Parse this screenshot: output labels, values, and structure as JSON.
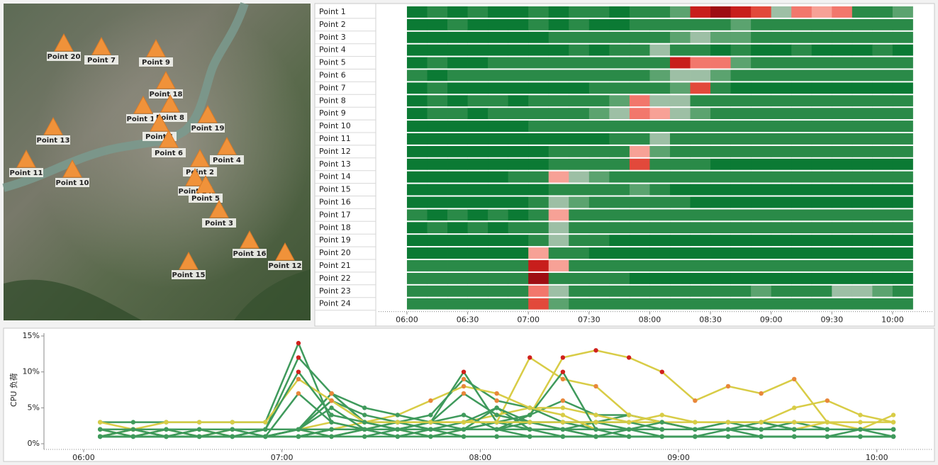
{
  "map": {
    "markers": [
      "Point 20",
      "Point 7",
      "Point 9",
      "Point 18",
      "Point 17",
      "Point 8",
      "Point 1",
      "Point 19",
      "Point 13",
      "Point 6",
      "Point 4",
      "Point 11",
      "Point 2",
      "Point 10",
      "Point 14",
      "Point 5",
      "Point 3",
      "Point 16",
      "Point 12",
      "Point 15"
    ]
  },
  "chart_data": [
    {
      "type": "heatmap",
      "categories": [
        "Point 1",
        "Point 2",
        "Point 3",
        "Point 4",
        "Point 5",
        "Point 6",
        "Point 7",
        "Point 8",
        "Point 9",
        "Point 10",
        "Point 11",
        "Point 12",
        "Point 13",
        "Point 14",
        "Point 15",
        "Point 16",
        "Point 17",
        "Point 18",
        "Point 19",
        "Point 20",
        "Point 21",
        "Point 22",
        "Point 23",
        "Point 24"
      ],
      "bins": [
        360,
        370,
        380,
        390,
        400,
        410,
        420,
        430,
        440,
        450,
        460,
        470,
        480,
        490,
        500,
        510,
        520,
        530,
        540,
        550,
        560,
        570,
        580,
        590,
        600,
        610
      ],
      "values": [
        [
          1,
          2,
          1,
          2,
          1,
          1,
          2,
          1,
          2,
          2,
          1,
          2,
          2,
          4,
          12,
          13,
          12,
          10,
          6,
          8,
          7,
          9,
          3,
          2,
          4
        ],
        [
          1,
          1,
          2,
          1,
          1,
          1,
          2,
          1,
          2,
          1,
          1,
          2,
          2,
          3,
          2,
          3,
          4,
          3,
          2,
          3,
          2,
          2,
          2,
          2,
          2
        ],
        [
          1,
          1,
          1,
          1,
          1,
          1,
          1,
          2,
          2,
          2,
          2,
          2,
          3,
          4,
          6,
          4,
          4,
          3,
          2,
          2,
          2,
          3,
          2,
          2,
          2
        ],
        [
          1,
          1,
          1,
          1,
          1,
          1,
          1,
          1,
          2,
          1,
          2,
          3,
          5,
          2,
          2,
          1,
          2,
          1,
          1,
          2,
          1,
          1,
          1,
          2,
          1
        ],
        [
          1,
          2,
          1,
          1,
          2,
          2,
          2,
          2,
          2,
          3,
          3,
          3,
          3,
          12,
          9,
          8,
          4,
          3,
          2,
          2,
          2,
          2,
          3,
          2,
          2
        ],
        [
          2,
          1,
          2,
          2,
          2,
          2,
          2,
          3,
          2,
          2,
          3,
          3,
          4,
          5,
          5,
          4,
          3,
          3,
          3,
          3,
          3,
          3,
          3,
          3,
          3
        ],
        [
          1,
          2,
          1,
          1,
          1,
          1,
          1,
          1,
          1,
          2,
          2,
          2,
          2,
          4,
          10,
          2,
          1,
          1,
          1,
          1,
          1,
          1,
          1,
          1,
          1
        ],
        [
          1,
          2,
          1,
          2,
          2,
          1,
          2,
          2,
          2,
          3,
          4,
          9,
          6,
          5,
          3,
          2,
          2,
          2,
          2,
          2,
          2,
          2,
          2,
          2,
          2
        ],
        [
          1,
          2,
          2,
          1,
          2,
          2,
          2,
          2,
          3,
          4,
          6,
          8,
          7,
          5,
          4,
          2,
          2,
          2,
          2,
          2,
          2,
          2,
          2,
          2,
          2
        ],
        [
          1,
          1,
          1,
          1,
          1,
          1,
          2,
          2,
          2,
          2,
          2,
          2,
          3,
          3,
          3,
          3,
          2,
          3,
          2,
          2,
          3,
          2,
          2,
          2,
          2
        ],
        [
          1,
          1,
          1,
          1,
          1,
          1,
          1,
          1,
          1,
          1,
          2,
          2,
          5,
          3,
          3,
          3,
          3,
          2,
          2,
          3,
          3,
          2,
          2,
          2,
          2
        ],
        [
          1,
          1,
          1,
          1,
          1,
          1,
          1,
          2,
          2,
          2,
          3,
          7,
          4,
          3,
          2,
          2,
          2,
          2,
          2,
          2,
          2,
          2,
          2,
          2,
          2
        ],
        [
          1,
          1,
          1,
          1,
          1,
          1,
          1,
          2,
          2,
          2,
          3,
          10,
          3,
          2,
          2,
          1,
          1,
          1,
          1,
          1,
          1,
          1,
          1,
          1,
          1
        ],
        [
          1,
          1,
          1,
          1,
          1,
          2,
          2,
          7,
          5,
          4,
          3,
          2,
          2,
          2,
          2,
          2,
          2,
          2,
          2,
          2,
          2,
          2,
          2,
          2,
          2
        ],
        [
          1,
          1,
          1,
          1,
          1,
          1,
          1,
          2,
          2,
          2,
          3,
          4,
          2,
          1,
          1,
          1,
          1,
          1,
          1,
          1,
          1,
          1,
          1,
          1,
          1
        ],
        [
          1,
          1,
          1,
          1,
          1,
          1,
          2,
          6,
          4,
          3,
          2,
          2,
          2,
          2,
          1,
          1,
          1,
          1,
          1,
          1,
          1,
          1,
          1,
          1,
          1
        ],
        [
          2,
          1,
          2,
          1,
          2,
          1,
          2,
          7,
          3,
          2,
          2,
          2,
          2,
          2,
          2,
          2,
          2,
          2,
          2,
          2,
          2,
          2,
          2,
          2,
          2
        ],
        [
          1,
          2,
          1,
          2,
          1,
          2,
          2,
          6,
          3,
          2,
          2,
          2,
          2,
          2,
          2,
          2,
          2,
          2,
          2,
          2,
          2,
          2,
          2,
          2,
          2
        ],
        [
          1,
          1,
          1,
          1,
          1,
          1,
          2,
          5,
          2,
          2,
          1,
          1,
          1,
          1,
          1,
          1,
          1,
          1,
          1,
          1,
          1,
          1,
          1,
          1,
          1
        ],
        [
          1,
          1,
          1,
          1,
          1,
          1,
          7,
          3,
          2,
          1,
          1,
          1,
          1,
          1,
          1,
          1,
          1,
          1,
          1,
          1,
          1,
          1,
          1,
          1,
          1
        ],
        [
          2,
          2,
          2,
          2,
          2,
          2,
          12,
          7,
          3,
          3,
          2,
          2,
          2,
          2,
          2,
          2,
          2,
          2,
          2,
          2,
          2,
          2,
          2,
          2,
          2
        ],
        [
          3,
          3,
          3,
          3,
          3,
          3,
          14,
          3,
          2,
          2,
          2,
          1,
          1,
          1,
          1,
          1,
          1,
          1,
          1,
          1,
          1,
          1,
          1,
          1,
          1
        ],
        [
          3,
          2,
          3,
          3,
          3,
          3,
          9,
          6,
          3,
          3,
          3,
          3,
          3,
          3,
          3,
          3,
          3,
          4,
          3,
          3,
          3,
          5,
          6,
          4,
          3
        ],
        [
          2,
          2,
          2,
          2,
          2,
          2,
          10,
          4,
          3,
          2,
          2,
          2,
          2,
          2,
          2,
          2,
          2,
          2,
          2,
          2,
          2,
          2,
          2,
          2,
          2
        ]
      ],
      "xlim": [
        346,
        620
      ],
      "xticks": [
        {
          "value": 360,
          "label": "06:00"
        },
        {
          "value": 390,
          "label": "06:30"
        },
        {
          "value": 420,
          "label": "07:00"
        },
        {
          "value": 450,
          "label": "07:30"
        },
        {
          "value": 480,
          "label": "08:00"
        },
        {
          "value": 510,
          "label": "08:30"
        },
        {
          "value": 540,
          "label": "09:00"
        },
        {
          "value": 570,
          "label": "09:30"
        },
        {
          "value": 600,
          "label": "10:00"
        }
      ],
      "zlim": [
        1,
        13
      ],
      "colorscale": [
        "#0b7a34",
        "#2a8a48",
        "#5ba36f",
        "#9dbfa5",
        "#f7a196",
        "#f2776c",
        "#e2493b",
        "#c81e1c",
        "#9e0d12"
      ]
    },
    {
      "type": "line",
      "ylabel": "CPU 负荷",
      "xlim": [
        348,
        617
      ],
      "ylim": [
        0,
        15
      ],
      "yticks": [
        {
          "value": 0,
          "label": "0%"
        },
        {
          "value": 5,
          "label": "5%"
        },
        {
          "value": 10,
          "label": "10%"
        },
        {
          "value": 15,
          "label": "15%"
        }
      ],
      "xticks": [
        {
          "value": 360,
          "label": "06:00"
        },
        {
          "value": 420,
          "label": "07:00"
        },
        {
          "value": 480,
          "label": "08:00"
        },
        {
          "value": 540,
          "label": "09:00"
        },
        {
          "value": 600,
          "label": "10:00"
        }
      ],
      "colors": [
        "#d8cc46",
        "#3f9a5c",
        "#3f9a5c",
        "#3f9a5c",
        "#d8cc46",
        "#d8cc46",
        "#3f9a5c",
        "#3f9a5c",
        "#d8cc46",
        "#3f9a5c",
        "#3f9a5c",
        "#3f9a5c",
        "#3f9a5c",
        "#3f9a5c",
        "#3f9a5c",
        "#3f9a5c",
        "#3f9a5c",
        "#3f9a5c",
        "#3f9a5c",
        "#3f9a5c",
        "#3f9a5c",
        "#3f9a5c",
        "#d8cc46",
        "#3f9a5c"
      ]
    }
  ]
}
